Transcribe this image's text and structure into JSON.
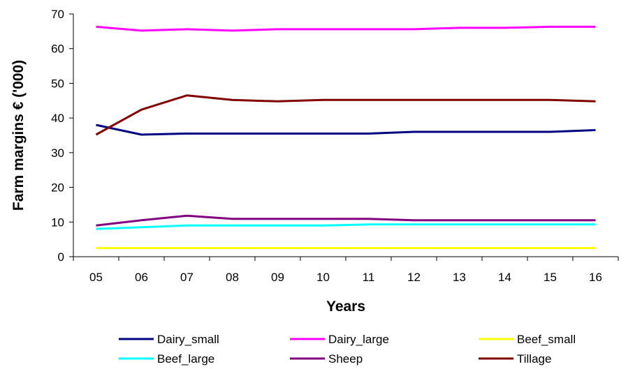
{
  "chart_data": {
    "type": "line",
    "title": "",
    "xlabel": "Years",
    "ylabel": "Farm margins € ('000)",
    "categories": [
      "05",
      "06",
      "07",
      "08",
      "09",
      "10",
      "11",
      "12",
      "13",
      "14",
      "15",
      "16"
    ],
    "ylim": [
      0,
      70
    ],
    "yticks": [
      "0",
      "10",
      "20",
      "30",
      "40",
      "50",
      "60",
      "70"
    ],
    "grid": false,
    "legend_position": "bottom",
    "series": [
      {
        "name": "Dairy_small",
        "color": "#000080",
        "values": [
          38,
          35.2,
          35.5,
          35.5,
          35.5,
          35.5,
          35.5,
          36,
          36,
          36,
          36,
          36.5
        ]
      },
      {
        "name": "Dairy_large",
        "color": "#ff00ff",
        "values": [
          66.3,
          65.2,
          65.6,
          65.2,
          65.6,
          65.6,
          65.6,
          65.6,
          66,
          66,
          66.3,
          66.3
        ]
      },
      {
        "name": "Beef_small",
        "color": "#ffff00",
        "values": [
          2.5,
          2.5,
          2.5,
          2.5,
          2.5,
          2.5,
          2.5,
          2.5,
          2.5,
          2.5,
          2.5,
          2.5
        ]
      },
      {
        "name": "Beef_large",
        "color": "#00ffff",
        "values": [
          8,
          8.5,
          9,
          9,
          9,
          9,
          9.3,
          9.3,
          9.3,
          9.3,
          9.3,
          9.3
        ]
      },
      {
        "name": "Sheep",
        "color": "#800080",
        "values": [
          9,
          10.5,
          11.8,
          10.9,
          10.9,
          10.9,
          10.9,
          10.5,
          10.5,
          10.5,
          10.5,
          10.5
        ]
      },
      {
        "name": "Tillage",
        "color": "#800000",
        "values": [
          35.2,
          42.4,
          46.5,
          45.2,
          44.8,
          45.2,
          45.2,
          45.2,
          45.2,
          45.2,
          45.2,
          44.8
        ]
      }
    ]
  }
}
